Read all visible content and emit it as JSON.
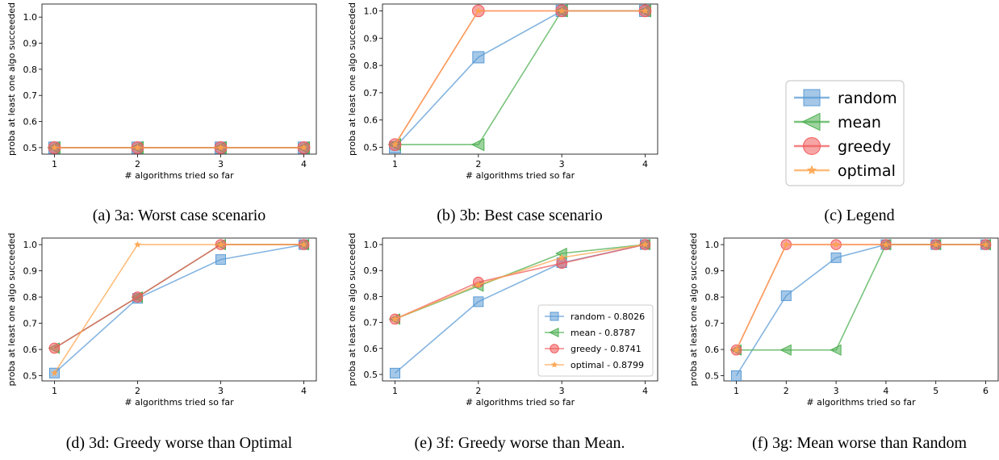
{
  "series_styles": {
    "random": {
      "color": "#5b9bd5",
      "marker": "square"
    },
    "mean": {
      "color": "#4caf50",
      "marker": "triangle-left"
    },
    "greedy": {
      "color": "#f05a5a",
      "marker": "circle"
    },
    "optimal": {
      "color": "#ffa54f",
      "marker": "star"
    }
  },
  "legend_panel": {
    "entries": [
      "random",
      "mean",
      "greedy",
      "optimal"
    ],
    "caption": "(c) Legend"
  },
  "chart_data": [
    {
      "type": "line",
      "caption": "(a) 3a: Worst case scenario",
      "xlabel": "# algorithms tried so far",
      "ylabel": "proba at least one algo succeeded",
      "x": [
        1,
        2,
        3,
        4
      ],
      "xlim": [
        0.85,
        4.15
      ],
      "ylim": [
        0.475,
        1.05
      ],
      "yticks": [
        0.5,
        0.6,
        0.7,
        0.8,
        0.9,
        1.0
      ],
      "series": [
        {
          "name": "random",
          "values": [
            0.5,
            0.5,
            0.5,
            0.5
          ]
        },
        {
          "name": "mean",
          "values": [
            0.5,
            0.5,
            0.5,
            0.5
          ]
        },
        {
          "name": "greedy",
          "values": [
            0.5,
            0.5,
            0.5,
            0.5
          ]
        },
        {
          "name": "optimal",
          "values": [
            0.5,
            0.5,
            0.5,
            0.5
          ]
        }
      ],
      "legend": null
    },
    {
      "type": "line",
      "caption": "(b) 3b: Best case scenario",
      "xlabel": "# algorithms tried so far",
      "ylabel": "proba at least one algo succeeded",
      "x": [
        1,
        2,
        3,
        4
      ],
      "xlim": [
        0.85,
        4.15
      ],
      "ylim": [
        0.475,
        1.025
      ],
      "yticks": [
        0.5,
        0.6,
        0.7,
        0.8,
        0.9,
        1.0
      ],
      "series": [
        {
          "name": "random",
          "values": [
            0.5,
            0.83,
            1.0,
            1.0
          ]
        },
        {
          "name": "mean",
          "values": [
            0.51,
            0.51,
            1.0,
            1.0
          ]
        },
        {
          "name": "greedy",
          "values": [
            0.51,
            1.0,
            1.0,
            1.0
          ]
        },
        {
          "name": "optimal",
          "values": [
            0.51,
            1.0,
            1.0,
            1.0
          ]
        }
      ],
      "legend": null
    },
    {
      "type": "line",
      "caption": "(d) 3d: Greedy worse than Optimal",
      "xlabel": "# algorithms tried so far",
      "ylabel": "proba at least one algo succeeded",
      "x": [
        1,
        2,
        3,
        4
      ],
      "xlim": [
        0.85,
        4.15
      ],
      "ylim": [
        0.48,
        1.025
      ],
      "yticks": [
        0.5,
        0.6,
        0.7,
        0.8,
        0.9,
        1.0
      ],
      "series": [
        {
          "name": "random",
          "values": [
            0.51,
            0.795,
            0.943,
            1.0
          ]
        },
        {
          "name": "mean",
          "values": [
            0.605,
            0.8,
            1.0,
            1.0
          ]
        },
        {
          "name": "greedy",
          "values": [
            0.605,
            0.8,
            1.0,
            1.0
          ]
        },
        {
          "name": "optimal",
          "values": [
            0.51,
            1.0,
            1.0,
            1.0
          ]
        }
      ],
      "legend": null
    },
    {
      "type": "line",
      "caption": "(e) 3f: Greedy worse than Mean.",
      "xlabel": "# algorithms tried so far",
      "ylabel": "proba at least one algo succeeded",
      "x": [
        1,
        2,
        3,
        4
      ],
      "xlim": [
        0.85,
        4.15
      ],
      "ylim": [
        0.475,
        1.025
      ],
      "yticks": [
        0.5,
        0.6,
        0.7,
        0.8,
        0.9,
        1.0
      ],
      "series": [
        {
          "name": "random",
          "values": [
            0.505,
            0.78,
            0.93,
            1.0
          ]
        },
        {
          "name": "mean",
          "values": [
            0.713,
            0.84,
            0.966,
            1.0
          ]
        },
        {
          "name": "greedy",
          "values": [
            0.713,
            0.855,
            0.928,
            1.0
          ]
        },
        {
          "name": "optimal",
          "values": [
            0.713,
            0.845,
            0.95,
            1.0
          ]
        }
      ],
      "legend": {
        "placement": "lower-right",
        "entries": [
          "random - 0.8026",
          "mean - 0.8787",
          "greedy - 0.8741",
          "optimal - 0.8799"
        ]
      }
    },
    {
      "type": "line",
      "caption": "(f) 3g: Mean worse than Random",
      "xlabel": "# algorithms tried so far",
      "ylabel": "proba at least one algo succeeded",
      "x": [
        1,
        2,
        3,
        4,
        5,
        6
      ],
      "xlim": [
        0.75,
        6.25
      ],
      "ylim": [
        0.48,
        1.025
      ],
      "yticks": [
        0.5,
        0.6,
        0.7,
        0.8,
        0.9,
        1.0
      ],
      "series": [
        {
          "name": "random",
          "values": [
            0.5,
            0.805,
            0.95,
            1.0,
            1.0,
            1.0
          ]
        },
        {
          "name": "mean",
          "values": [
            0.598,
            0.598,
            0.598,
            1.0,
            1.0,
            1.0
          ]
        },
        {
          "name": "greedy",
          "values": [
            0.598,
            1.0,
            1.0,
            1.0,
            1.0,
            1.0
          ]
        },
        {
          "name": "optimal",
          "values": [
            0.598,
            1.0,
            1.0,
            1.0,
            1.0,
            1.0
          ]
        }
      ],
      "legend": null
    }
  ]
}
